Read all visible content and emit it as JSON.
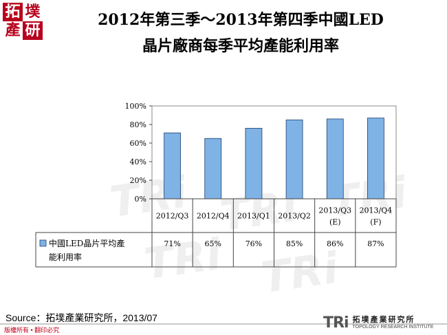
{
  "header": {
    "logo_chars": [
      "拓",
      "墣",
      "產",
      "研"
    ],
    "title_line1": "2012年第三季～2013年第四季中國LED",
    "title_line2": "晶片廠商每季平均產能利用率"
  },
  "chart_data": {
    "type": "bar",
    "categories": [
      "2012/Q3",
      "2012/Q4",
      "2013/Q1",
      "2013/Q2",
      "2013/Q3\n(E)",
      "2013/Q4\n(F)"
    ],
    "series": [
      {
        "name": "中國LED晶片平均產能利用率",
        "values": [
          71,
          65,
          76,
          85,
          86,
          87
        ]
      }
    ],
    "value_labels": [
      "71%",
      "65%",
      "76%",
      "85%",
      "86%",
      "87%"
    ],
    "y_ticks": [
      "0%",
      "20%",
      "40%",
      "60%",
      "80%",
      "100%"
    ],
    "ylim": [
      0,
      100
    ],
    "grid": false,
    "legend": "data-table"
  },
  "footer": {
    "source": "Source：拓墣產業研究所，2013/07",
    "copyright": "版權所有 • 翻印必究",
    "logo_mark": "TRi",
    "logo_cn": "拓墣產業研究所",
    "logo_en": "TOPOLOGY RESEARCH INSTITUTE"
  },
  "watermark": {
    "text": "TRi"
  },
  "colors": {
    "bar_fill": "#7fb2e5",
    "bar_stroke": "#1f3f6e",
    "brand_red": "#b8001c"
  }
}
